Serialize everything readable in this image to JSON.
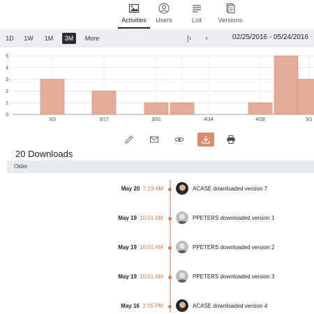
{
  "tabs": [
    {
      "label": "Activities",
      "icon": "image-icon"
    },
    {
      "label": "Users",
      "icon": "user-icon"
    },
    {
      "label": "List",
      "icon": "list-icon"
    },
    {
      "label": "Versions",
      "icon": "versions-icon"
    }
  ],
  "active_tab": "Activities",
  "toolbar": {
    "ranges": [
      "1D",
      "1W",
      "1M",
      "3M",
      "More"
    ],
    "active_range": "3M",
    "first_label": "|‹",
    "prev_label": "‹",
    "date_range": "02/25/2016 - 05/24/2016"
  },
  "colors": {
    "accent": "#dc8a6a",
    "bar": "#e3ad99",
    "bar_border": "#cf8e76",
    "toolbar_bg": "#eceef2",
    "active_range_bg": "#2b2f36"
  },
  "chart_data": {
    "type": "bar",
    "categories": [
      "3/3",
      "3/17",
      "3/31",
      "",
      "4/14",
      "4/28",
      "",
      "5/1"
    ],
    "values": [
      3,
      2,
      1,
      1,
      0,
      1,
      5,
      3
    ],
    "x_tick_labels": [
      "3/3",
      "3/17",
      "3/31",
      "4/14",
      "4/28",
      "5/1"
    ],
    "y_ticks": [
      0,
      1,
      2,
      3,
      4,
      5
    ],
    "ylim": [
      0,
      5
    ],
    "grid": true
  },
  "actions": [
    {
      "name": "edit-icon"
    },
    {
      "name": "email-icon"
    },
    {
      "name": "view-icon"
    },
    {
      "name": "download-icon",
      "active": true
    },
    {
      "name": "print-icon"
    }
  ],
  "downloads": {
    "title": "20 Downloads",
    "section_label": "Older",
    "items": [
      {
        "date": "May 20",
        "time": "7:19 AM",
        "text": "ACASE downloaded version 7",
        "avatar": "avatar-acase"
      },
      {
        "date": "May 19",
        "time": "10:01 AM",
        "text": "PPETERS downloaded version 1",
        "avatar": "avatar-ppeters"
      },
      {
        "date": "May 19",
        "time": "10:01 AM",
        "text": "PPETERS downloaded version 2",
        "avatar": "avatar-ppeters"
      },
      {
        "date": "May 19",
        "time": "10:01 AM",
        "text": "PPETERS downloaded version 3",
        "avatar": "avatar-ppeters"
      },
      {
        "date": "May 16",
        "time": "2:05 PM",
        "text": "ACASE downloaded version 4",
        "avatar": "avatar-acase"
      }
    ]
  }
}
